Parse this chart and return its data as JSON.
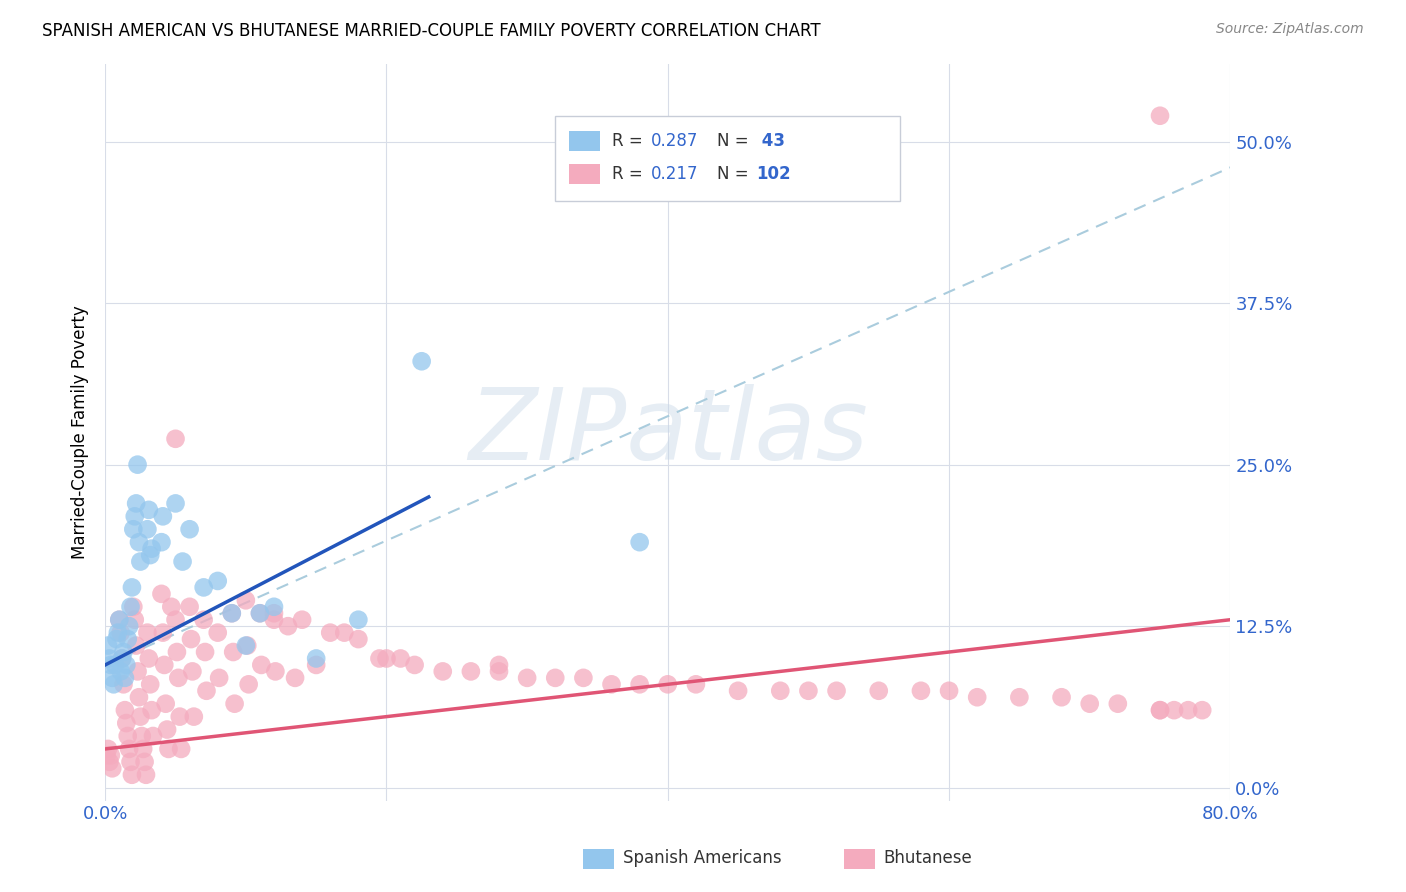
{
  "title": "SPANISH AMERICAN VS BHUTANESE MARRIED-COUPLE FAMILY POVERTY CORRELATION CHART",
  "source": "Source: ZipAtlas.com",
  "ylabel": "Married-Couple Family Poverty",
  "ytick_labels": [
    "0.0%",
    "12.5%",
    "25.0%",
    "37.5%",
    "50.0%"
  ],
  "ytick_values": [
    0.0,
    0.125,
    0.25,
    0.375,
    0.5
  ],
  "xlim": [
    0.0,
    0.8
  ],
  "ylim": [
    -0.01,
    0.56
  ],
  "watermark": "ZIPatlas",
  "blue_color": "#93C6ED",
  "pink_color": "#F4ABBE",
  "blue_line_color": "#2255BB",
  "pink_line_color": "#E05575",
  "dash_color": "#AACCDD",
  "axis_color": "#3366CC",
  "grid_color": "#D8DDE8",
  "sa_x": [
    0.002,
    0.003,
    0.004,
    0.005,
    0.006,
    0.007,
    0.008,
    0.009,
    0.01,
    0.011,
    0.012,
    0.013,
    0.014,
    0.015,
    0.016,
    0.017,
    0.018,
    0.019,
    0.02,
    0.021,
    0.022,
    0.023,
    0.024,
    0.025,
    0.03,
    0.031,
    0.032,
    0.033,
    0.04,
    0.041,
    0.05,
    0.055,
    0.06,
    0.07,
    0.08,
    0.09,
    0.1,
    0.11,
    0.12,
    0.15,
    0.18,
    0.225,
    0.38
  ],
  "sa_y": [
    0.11,
    0.1,
    0.095,
    0.085,
    0.08,
    0.095,
    0.115,
    0.12,
    0.13,
    0.09,
    0.1,
    0.105,
    0.085,
    0.095,
    0.115,
    0.125,
    0.14,
    0.155,
    0.2,
    0.21,
    0.22,
    0.25,
    0.19,
    0.175,
    0.2,
    0.215,
    0.18,
    0.185,
    0.19,
    0.21,
    0.22,
    0.175,
    0.2,
    0.155,
    0.16,
    0.135,
    0.11,
    0.135,
    0.14,
    0.1,
    0.13,
    0.33,
    0.19
  ],
  "bh_x": [
    0.001,
    0.002,
    0.003,
    0.004,
    0.005,
    0.01,
    0.011,
    0.012,
    0.013,
    0.014,
    0.015,
    0.016,
    0.017,
    0.018,
    0.019,
    0.02,
    0.021,
    0.022,
    0.023,
    0.024,
    0.025,
    0.026,
    0.027,
    0.028,
    0.029,
    0.03,
    0.031,
    0.032,
    0.033,
    0.034,
    0.04,
    0.041,
    0.042,
    0.043,
    0.044,
    0.045,
    0.05,
    0.051,
    0.052,
    0.053,
    0.054,
    0.06,
    0.061,
    0.062,
    0.063,
    0.07,
    0.071,
    0.072,
    0.08,
    0.081,
    0.09,
    0.091,
    0.092,
    0.1,
    0.101,
    0.102,
    0.11,
    0.111,
    0.12,
    0.121,
    0.13,
    0.135,
    0.14,
    0.15,
    0.16,
    0.17,
    0.18,
    0.2,
    0.21,
    0.22,
    0.24,
    0.26,
    0.28,
    0.3,
    0.32,
    0.34,
    0.36,
    0.38,
    0.4,
    0.42,
    0.45,
    0.48,
    0.5,
    0.52,
    0.55,
    0.58,
    0.6,
    0.62,
    0.65,
    0.68,
    0.7,
    0.72,
    0.75,
    0.78,
    0.75,
    0.76,
    0.77,
    0.05,
    0.12,
    0.28,
    0.047,
    0.195,
    0.75
  ],
  "bh_y": [
    0.025,
    0.03,
    0.02,
    0.025,
    0.015,
    0.13,
    0.12,
    0.1,
    0.08,
    0.06,
    0.05,
    0.04,
    0.03,
    0.02,
    0.01,
    0.14,
    0.13,
    0.11,
    0.09,
    0.07,
    0.055,
    0.04,
    0.03,
    0.02,
    0.01,
    0.12,
    0.1,
    0.08,
    0.06,
    0.04,
    0.15,
    0.12,
    0.095,
    0.065,
    0.045,
    0.03,
    0.13,
    0.105,
    0.085,
    0.055,
    0.03,
    0.14,
    0.115,
    0.09,
    0.055,
    0.13,
    0.105,
    0.075,
    0.12,
    0.085,
    0.135,
    0.105,
    0.065,
    0.145,
    0.11,
    0.08,
    0.135,
    0.095,
    0.13,
    0.09,
    0.125,
    0.085,
    0.13,
    0.095,
    0.12,
    0.12,
    0.115,
    0.1,
    0.1,
    0.095,
    0.09,
    0.09,
    0.09,
    0.085,
    0.085,
    0.085,
    0.08,
    0.08,
    0.08,
    0.08,
    0.075,
    0.075,
    0.075,
    0.075,
    0.075,
    0.075,
    0.075,
    0.07,
    0.07,
    0.07,
    0.065,
    0.065,
    0.06,
    0.06,
    0.06,
    0.06,
    0.06,
    0.27,
    0.135,
    0.095,
    0.14,
    0.1,
    0.52
  ],
  "sa_line_x": [
    0.0,
    0.23
  ],
  "sa_line_y_start": 0.095,
  "sa_line_y_end": 0.225,
  "dash_line_x": [
    0.0,
    0.8
  ],
  "dash_line_y_start": 0.095,
  "dash_line_y_end": 0.48,
  "bh_line_x": [
    0.0,
    0.8
  ],
  "bh_line_y_start": 0.03,
  "bh_line_y_end": 0.13
}
